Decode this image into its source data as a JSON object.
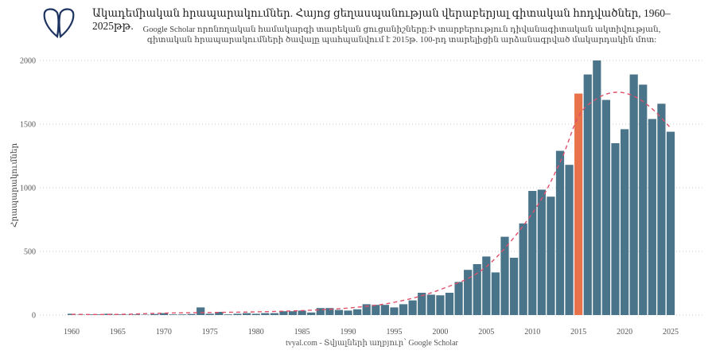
{
  "header": {
    "title": "Ակադեմիական հրապարակումներ. Հայոց ցեղասպանության վերաբերյալ գիտական հոդվածներ, 1960–2025թթ.",
    "subtitle_line1": "Google Scholar որոնողական համակարգի տարեկան ցուցանիշները:Ի տարբերություն դիվանագիտական ակտիվության,",
    "subtitle_line2": "գիտական հրապարակումների ծավալը պահպանվում է 2015թ. 100-րդ տարելիցին արձանագրված մակարդակին մոտ:",
    "logo_icon": "tvyal-petal-logo",
    "logo_color": "#1d3461"
  },
  "caption": "tvyal.com  -  Տվյալների աղբյուր՝ Google Scholar",
  "chart_data": {
    "type": "bar",
    "title": "Ակադեմիական հրապարակումներ. Հայոց ցեղասպանության վերաբերյալ գիտական հոդվածներ, 1960–2025թթ.",
    "xlabel": "",
    "ylabel": "Հրապարակումներ",
    "ylim": [
      0,
      2000
    ],
    "yticks": [
      "0",
      "500",
      "1000",
      "1500",
      "2000"
    ],
    "xticks": [
      "1960",
      "1965",
      "1970",
      "1975",
      "1980",
      "1985",
      "1990",
      "1995",
      "2000",
      "2005",
      "2010",
      "2015",
      "2020",
      "2025"
    ],
    "grid": "horizontal dotted",
    "bar_color": "#4a7489",
    "highlight_color": "#e8724a",
    "highlight_year": 2015,
    "trend_color": "#e0506a",
    "x": [
      1960,
      1961,
      1962,
      1963,
      1964,
      1965,
      1966,
      1967,
      1968,
      1969,
      1970,
      1971,
      1972,
      1973,
      1974,
      1975,
      1976,
      1977,
      1978,
      1979,
      1980,
      1981,
      1982,
      1983,
      1984,
      1985,
      1986,
      1987,
      1988,
      1989,
      1990,
      1991,
      1992,
      1993,
      1994,
      1995,
      1996,
      1997,
      1998,
      1999,
      2000,
      2001,
      2002,
      2003,
      2004,
      2005,
      2006,
      2007,
      2008,
      2009,
      2010,
      2011,
      2012,
      2013,
      2014,
      2015,
      2016,
      2017,
      2018,
      2019,
      2020,
      2021,
      2022,
      2023,
      2024,
      2025
    ],
    "values": [
      10,
      3,
      5,
      5,
      10,
      5,
      3,
      5,
      3,
      8,
      15,
      5,
      5,
      8,
      60,
      10,
      25,
      5,
      10,
      15,
      10,
      15,
      15,
      30,
      30,
      35,
      20,
      55,
      55,
      40,
      35,
      45,
      85,
      80,
      80,
      60,
      85,
      115,
      175,
      160,
      155,
      175,
      260,
      355,
      400,
      460,
      335,
      615,
      450,
      720,
      975,
      985,
      930,
      1290,
      1180,
      1740,
      1890,
      2000,
      1690,
      1350,
      1460,
      1890,
      1810,
      1540,
      1660,
      1440
    ],
    "trend": {
      "style": "dashed",
      "x": [
        1960,
        1965,
        1970,
        1975,
        1980,
        1985,
        1990,
        1995,
        2000,
        2005,
        2010,
        2013,
        2015,
        2017,
        2019,
        2021,
        2023,
        2025
      ],
      "y": [
        5,
        5,
        15,
        20,
        25,
        35,
        55,
        100,
        200,
        380,
        800,
        1200,
        1560,
        1700,
        1750,
        1720,
        1620,
        1470
      ]
    }
  }
}
